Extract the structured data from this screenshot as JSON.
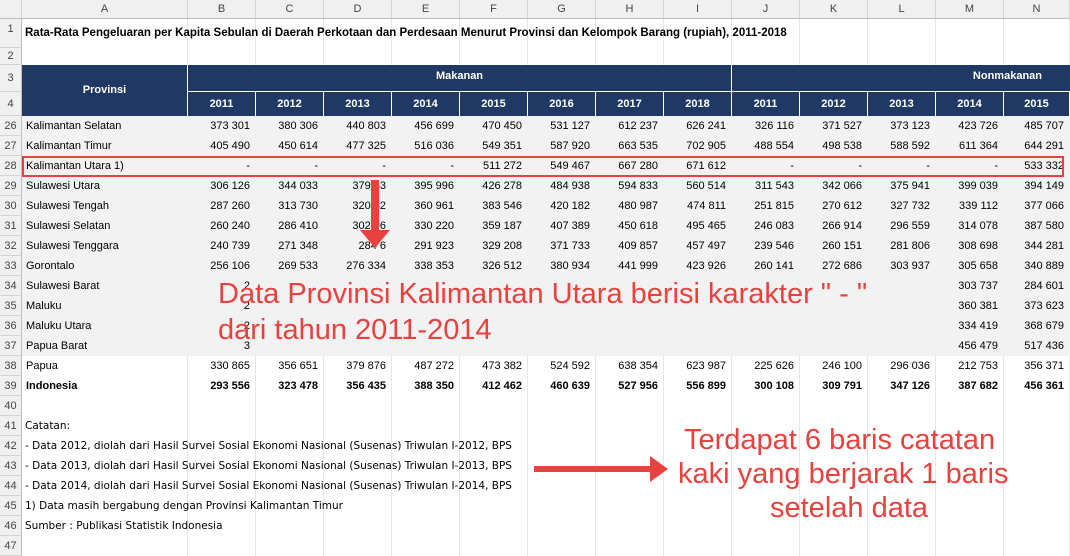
{
  "sheet": {
    "columns": [
      "A",
      "B",
      "C",
      "D",
      "E",
      "F",
      "G",
      "H",
      "I",
      "J",
      "K",
      "L",
      "M",
      "N"
    ],
    "title": "Rata-Rata Pengeluaran per Kapita Sebulan di Daerah Perkotaan dan Perdesaan Menurut Provinsi dan Kelompok Barang (rupiah), 2011-2018",
    "header": {
      "provinsi": "Provinsi",
      "makanan": "Makanan",
      "nonmakanan": "Nonmakanan",
      "years_makanan": [
        "2011",
        "2012",
        "2013",
        "2014",
        "2015",
        "2016",
        "2017",
        "2018"
      ],
      "years_nonmakanan": [
        "2011",
        "2012",
        "2013",
        "2014",
        "2015"
      ]
    },
    "data_rows": [
      {
        "row": "26",
        "name": "Kalimantan Selatan",
        "values": [
          "373 301",
          "380 306",
          "440 803",
          "456 699",
          "470 450",
          "531 127",
          "612 237",
          "626 241",
          "326 116",
          "371 527",
          "373 123",
          "423 726",
          "485 707"
        ]
      },
      {
        "row": "27",
        "name": "Kalimantan Timur",
        "values": [
          "405 490",
          "450 614",
          "477 325",
          "516 036",
          "549 351",
          "587 920",
          "663 535",
          "702 905",
          "488 554",
          "498 538",
          "588 592",
          "611 364",
          "644 291"
        ]
      },
      {
        "row": "28",
        "name": "Kalimantan Utara 1)",
        "values": [
          "-",
          "-",
          "-",
          "-",
          "511 272",
          "549 467",
          "667 280",
          "671 612",
          "-",
          "-",
          "-",
          "-",
          "533 332"
        ]
      },
      {
        "row": "29",
        "name": "Sulawesi Utara",
        "values": [
          "306 126",
          "344 033",
          "379 83",
          "395 996",
          "426 278",
          "484 938",
          "594 833",
          "560 514",
          "311 543",
          "342 066",
          "375 941",
          "399 039",
          "394 149"
        ]
      },
      {
        "row": "30",
        "name": "Sulawesi Tengah",
        "values": [
          "287 260",
          "313 730",
          "320 82",
          "360 961",
          "383 546",
          "420 182",
          "480 987",
          "474 811",
          "251 815",
          "270 612",
          "327 732",
          "339 112",
          "377 066"
        ]
      },
      {
        "row": "31",
        "name": "Sulawesi Selatan",
        "values": [
          "260 240",
          "286 410",
          "302 96",
          "330 220",
          "359 187",
          "407 389",
          "450 618",
          "495 465",
          "246 083",
          "266 914",
          "296 559",
          "314 078",
          "387 580"
        ]
      },
      {
        "row": "32",
        "name": "Sulawesi Tenggara",
        "values": [
          "240 739",
          "271 348",
          "284 6",
          "291 923",
          "329 208",
          "371 733",
          "409 857",
          "457 497",
          "239 546",
          "260 151",
          "281 806",
          "308 698",
          "344 281"
        ]
      },
      {
        "row": "33",
        "name": "Gorontalo",
        "values": [
          "256 106",
          "269 533",
          "276 334",
          "338 353",
          "326 512",
          "380 934",
          "441 999",
          "423 926",
          "260 141",
          "272 686",
          "303 937",
          "305 658",
          "340 889"
        ]
      },
      {
        "row": "34",
        "name": "Sulawesi Barat",
        "values": [
          "2",
          "",
          "",
          "",
          "",
          "",
          "",
          "",
          "",
          "",
          "",
          "303 737",
          "284 601"
        ]
      },
      {
        "row": "35",
        "name": "Maluku",
        "values": [
          "2",
          "",
          "",
          "",
          "",
          "",
          "",
          "",
          "",
          "",
          "",
          "360 381",
          "373 623"
        ]
      },
      {
        "row": "36",
        "name": "Maluku Utara",
        "values": [
          "2",
          "",
          "",
          "",
          "",
          "",
          "",
          "",
          "",
          "",
          "",
          "334 419",
          "368 679"
        ]
      },
      {
        "row": "37",
        "name": "Papua Barat",
        "values": [
          "3",
          "",
          "",
          "",
          "",
          "",
          "",
          "",
          "",
          "",
          "",
          "456 479",
          "517 436"
        ]
      },
      {
        "row": "38",
        "name": "Papua",
        "values": [
          "330 865",
          "356 651",
          "379 876",
          "487 272",
          "473 382",
          "524 592",
          "638 354",
          "623 987",
          "225 626",
          "246 100",
          "296 036",
          "212 753",
          "356 371"
        ]
      },
      {
        "row": "39",
        "name": "Indonesia",
        "bold": true,
        "values": [
          "293 556",
          "323 478",
          "356 435",
          "388 350",
          "412 462",
          "460 639",
          "527 956",
          "556 899",
          "300 108",
          "309 791",
          "347 126",
          "387 682",
          "456 361"
        ]
      }
    ],
    "notes": [
      {
        "row": "40",
        "text": ""
      },
      {
        "row": "41",
        "text": "Catatan:"
      },
      {
        "row": "42",
        "text": "  - Data 2012, diolah dari Hasil Survei Sosial Ekonomi Nasional (Susenas) Triwulan I-2012, BPS"
      },
      {
        "row": "43",
        "text": " - Data 2013, diolah dari Hasil Survei Sosial Ekonomi Nasional (Susenas) Triwulan I-2013, BPS"
      },
      {
        "row": "44",
        "text": " - Data 2014, diolah dari Hasil Survei Sosial Ekonomi Nasional (Susenas) Triwulan I-2014, BPS"
      },
      {
        "row": "45",
        "text": "1) Data masih bergabung dengan Provinsi Kalimantan Timur"
      },
      {
        "row": "46",
        "text": "Sumber : Publikasi Statistik Indonesia"
      },
      {
        "row": "47",
        "text": ""
      }
    ]
  },
  "annotations": {
    "callout1_line1": "Data Provinsi Kalimantan Utara berisi karakter \" - \"",
    "callout1_line2": "dari tahun 2011-2014",
    "callout2_line1": "Terdapat 6 baris catatan",
    "callout2_line2": "kaki yang berjarak 1 baris",
    "callout2_line3": "setelah data",
    "color": "#e8413e"
  },
  "colors": {
    "header_navy": "#1f3864",
    "accent_red": "#e8413e"
  }
}
